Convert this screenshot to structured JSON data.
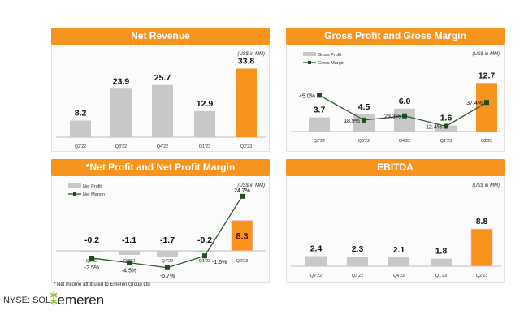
{
  "colors": {
    "accent": "#f7941d",
    "bar": "#c8c8c8",
    "line": "#2e5a2e",
    "marker": "#1e4d1e",
    "highlight": "#f7941d"
  },
  "footnote": "* Net income attributed to Emeren Group Ltd",
  "ticker": "NYSE: SOL",
  "logo_text": "emeren",
  "chart_data": [
    {
      "type": "bar",
      "title": "Net Revenue",
      "unit_label": "(US$ in MM)",
      "categories": [
        "Q2'22",
        "Q3'22",
        "Q4'22",
        "Q1'23",
        "Q2'23"
      ],
      "series": [
        {
          "values": [
            8.2,
            23.9,
            25.7,
            12.9,
            33.8
          ]
        }
      ],
      "value_labels": [
        "8.2",
        "23.9",
        "25.7",
        "12.9",
        "33.8"
      ],
      "highlight_last": true
    },
    {
      "type": "bar+line",
      "title": "Gross Profit and Gross Margin",
      "unit_label": "(US$ in MM)",
      "categories": [
        "Q2'22",
        "Q3'22",
        "Q4'22",
        "Q1'23",
        "Q2'23"
      ],
      "series": [
        {
          "name": "Gross Profit",
          "values": [
            3.7,
            4.5,
            6.0,
            1.6,
            12.7
          ]
        },
        {
          "name": "Gross Margin",
          "values": [
            45.0,
            18.9,
            23.3,
            12.4,
            37.4
          ],
          "unit": "%"
        }
      ],
      "value_labels": [
        "3.7",
        "4.5",
        "6.0",
        "1.6",
        "12.7"
      ],
      "line_labels": [
        "45.0%",
        "18.9%",
        "23.3%",
        "12.4%",
        "37.4%"
      ],
      "highlight_last": true
    },
    {
      "type": "bar+line",
      "title": "*Net Profit and Net Profit Margin",
      "unit_label": "(US$ in MM)",
      "categories": [
        "Q2'22",
        "Q3'22",
        "Q4'22",
        "Q1'23",
        "Q2'23"
      ],
      "series": [
        {
          "name": "Net Profit",
          "values": [
            -0.2,
            -1.1,
            -1.7,
            -0.2,
            8.3
          ]
        },
        {
          "name": "Net Margin",
          "values": [
            -2.5,
            -4.5,
            -6.7,
            -1.5,
            24.7
          ],
          "unit": "%"
        }
      ],
      "value_labels": [
        "-0.2",
        "-1.1",
        "-1.7",
        "-0.2",
        "8.3"
      ],
      "line_labels": [
        "-2.5%",
        "-4.5%",
        "-6.7%",
        "-1.5%",
        "24.7%"
      ],
      "highlight_last": true
    },
    {
      "type": "bar",
      "title": "EBITDA",
      "unit_label": "(US$ in MM)",
      "categories": [
        "Q2'22",
        "Q3'22",
        "Q4'22",
        "Q1'23",
        "Q2'23"
      ],
      "series": [
        {
          "values": [
            2.4,
            2.3,
            2.1,
            1.8,
            8.8
          ]
        }
      ],
      "value_labels": [
        "2.4",
        "2.3",
        "2.1",
        "1.8",
        "8.8"
      ],
      "highlight_last": true
    }
  ]
}
